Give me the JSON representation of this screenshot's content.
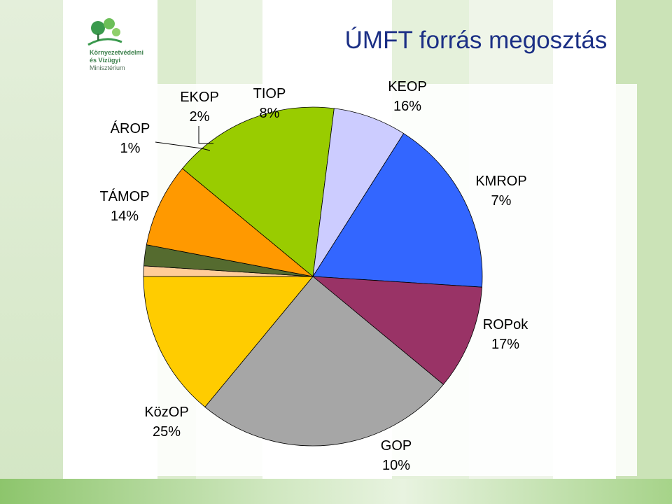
{
  "title": "ÚMFT forrás megosztás",
  "logo": {
    "line1": "Környezetvédelmi",
    "line2": "és Vízügyi",
    "line3": "Minisztérium"
  },
  "chart_data": {
    "type": "pie",
    "title": "ÚMFT forrás megosztás",
    "slices": [
      {
        "name": "ÁROP",
        "value": 1,
        "label": "1%",
        "color": "#ffcc99"
      },
      {
        "name": "EKOP",
        "value": 2,
        "label": "2%",
        "color": "#556b2f"
      },
      {
        "name": "TIOP",
        "value": 8,
        "label": "8%",
        "color": "#ff9900"
      },
      {
        "name": "KEOP",
        "value": 16,
        "label": "16%",
        "color": "#99cc00"
      },
      {
        "name": "KMROP",
        "value": 7,
        "label": "7%",
        "color": "#ccccff"
      },
      {
        "name": "ROPok",
        "value": 17,
        "label": "17%",
        "color": "#3366ff"
      },
      {
        "name": "GOP",
        "value": 10,
        "label": "10%",
        "color": "#993366"
      },
      {
        "name": "KözOP",
        "value": 25,
        "label": "25%",
        "color": "#a6a6a6"
      },
      {
        "name": "TÁMOP",
        "value": 14,
        "label": "14%",
        "color": "#ffcc00"
      }
    ]
  }
}
